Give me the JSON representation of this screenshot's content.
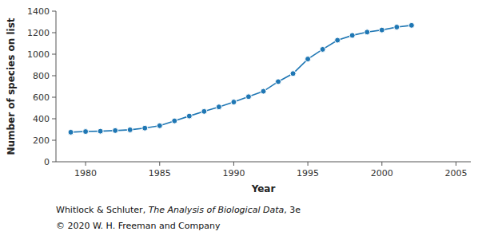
{
  "chart_data": {
    "type": "line",
    "x": [
      1979,
      1980,
      1981,
      1982,
      1983,
      1984,
      1985,
      1986,
      1987,
      1988,
      1989,
      1990,
      1991,
      1992,
      1993,
      1994,
      1995,
      1996,
      1997,
      1998,
      1999,
      2000,
      2001,
      2002
    ],
    "values": [
      275,
      281,
      284,
      290,
      297,
      313,
      335,
      380,
      425,
      468,
      510,
      555,
      605,
      655,
      745,
      820,
      955,
      1045,
      1130,
      1175,
      1205,
      1225,
      1252,
      1268
    ],
    "xlabel": "Year",
    "ylabel": "Number of species on list",
    "xlim": [
      1978,
      2006
    ],
    "ylim": [
      0,
      1400
    ],
    "xticks": [
      1980,
      1985,
      1990,
      1995,
      2000,
      2005
    ],
    "yticks": [
      0,
      200,
      400,
      600,
      800,
      1000,
      1200,
      1400
    ],
    "marker": "circle",
    "grid": false,
    "annotations": [
      "Whitlock & Schluter, ",
      "The Analysis of Biological Data",
      ", 3e",
      "© 2020 W. H. Freeman and Company"
    ]
  }
}
